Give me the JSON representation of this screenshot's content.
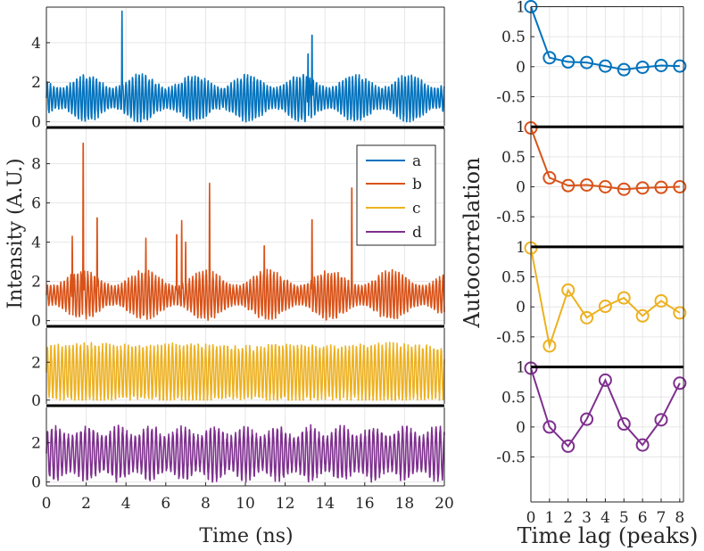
{
  "chart_data": {
    "left": {
      "type": "line",
      "xlabel": "Time (ns)",
      "ylabel": "Intensity (A.U.)",
      "x_range": [
        0,
        20
      ],
      "x_ticks": [
        0,
        2,
        4,
        6,
        8,
        10,
        12,
        14,
        16,
        18,
        20
      ],
      "legend": {
        "placement": "upper-right of panel b",
        "entries": [
          {
            "label": "a",
            "color": "#0072BD"
          },
          {
            "label": "b",
            "color": "#D95319"
          },
          {
            "label": "c",
            "color": "#EDB120"
          },
          {
            "label": "d",
            "color": "#7E2F8E"
          }
        ]
      },
      "panels": [
        {
          "name": "a",
          "color": "#0072BD",
          "ylim": [
            -0.2,
            5.8
          ],
          "yticks": [
            0,
            2,
            4
          ],
          "oscillation": {
            "period_ns": 0.165,
            "baseline": 1.2,
            "amp": 1.1,
            "mod_ns": 2.7,
            "mod_depth": 0.55
          },
          "spikes": [
            {
              "t": 3.8,
              "h": 5.6
            },
            {
              "t": 13.15,
              "h": 3.6
            },
            {
              "t": 13.35,
              "h": 4.6
            }
          ]
        },
        {
          "name": "b",
          "color": "#D95319",
          "ylim": [
            -0.2,
            9.8
          ],
          "yticks": [
            0,
            2,
            4,
            6,
            8
          ],
          "oscillation": {
            "period_ns": 0.17,
            "baseline": 1.3,
            "amp": 1.15,
            "mod_ns": 3.1,
            "mod_depth": 0.6
          },
          "spikes": [
            {
              "t": 1.3,
              "h": 4.3
            },
            {
              "t": 1.85,
              "h": 9.5
            },
            {
              "t": 2.55,
              "h": 5.5
            },
            {
              "t": 5.0,
              "h": 4.2
            },
            {
              "t": 6.55,
              "h": 4.6
            },
            {
              "t": 6.8,
              "h": 5.1
            },
            {
              "t": 7.0,
              "h": 4.0
            },
            {
              "t": 8.2,
              "h": 7.0
            },
            {
              "t": 10.95,
              "h": 4.0
            },
            {
              "t": 13.35,
              "h": 5.4
            },
            {
              "t": 15.35,
              "h": 7.1
            }
          ]
        },
        {
          "name": "c",
          "color": "#EDB120",
          "ylim": [
            -0.2,
            3.8
          ],
          "yticks": [
            0,
            2
          ],
          "oscillation": {
            "period_ns": 0.185,
            "baseline": 1.45,
            "amp": 1.4,
            "mod_ns": 5.0,
            "mod_depth": 0.08
          },
          "spikes": []
        },
        {
          "name": "d",
          "color": "#7E2F8E",
          "ylim": [
            -0.2,
            3.8
          ],
          "yticks": [
            0,
            2
          ],
          "oscillation": {
            "period_ns": 0.21,
            "baseline": 1.45,
            "amp": 1.3,
            "mod_ns": 1.6,
            "mod_depth": 0.35
          },
          "spikes": []
        }
      ]
    },
    "right": {
      "type": "line",
      "xlabel": "Time lag (peaks)",
      "ylabel": "Autocorrelation",
      "x_range": [
        0,
        8.2
      ],
      "x_ticks": [
        0,
        1,
        2,
        3,
        4,
        5,
        6,
        7,
        8
      ],
      "panels": [
        {
          "name": "a",
          "color": "#0072BD",
          "ylim": [
            -1.0,
            1.05
          ],
          "yticks": [
            1,
            0.5,
            0,
            -0.5
          ],
          "ytick_labels": [
            "1",
            "0.5",
            "0",
            "-0.5"
          ],
          "lags": [
            0,
            1,
            2,
            3,
            4,
            5,
            6,
            7,
            8
          ],
          "values": [
            1.0,
            0.15,
            0.08,
            0.07,
            0.01,
            -0.05,
            -0.01,
            0.02,
            0.01
          ]
        },
        {
          "name": "b",
          "color": "#D95319",
          "ylim": [
            -1.0,
            1.05
          ],
          "yticks": [
            1,
            0.5,
            0,
            -0.5
          ],
          "ytick_labels": [
            "1",
            "0.5",
            "0",
            "-0.5"
          ],
          "lags": [
            0,
            1,
            2,
            3,
            4,
            5,
            6,
            7,
            8
          ],
          "values": [
            0.98,
            0.15,
            0.02,
            0.03,
            0.0,
            -0.04,
            -0.02,
            -0.01,
            0.0
          ]
        },
        {
          "name": "c",
          "color": "#EDB120",
          "ylim": [
            -1.0,
            1.05
          ],
          "yticks": [
            1,
            0.5,
            0,
            -0.5
          ],
          "ytick_labels": [
            "1",
            "0.5",
            "0",
            "-0.5"
          ],
          "lags": [
            0,
            1,
            2,
            3,
            4,
            5,
            6,
            7,
            8
          ],
          "values": [
            0.98,
            -0.65,
            0.28,
            -0.18,
            0.01,
            0.15,
            -0.15,
            0.1,
            -0.1
          ]
        },
        {
          "name": "d",
          "color": "#7E2F8E",
          "ylim": [
            -1.0,
            1.05
          ],
          "yticks": [
            1,
            0.5,
            0,
            -0.5
          ],
          "ytick_labels": [
            "1",
            "0.5",
            "0",
            "-0.5"
          ],
          "lags": [
            0,
            1,
            2,
            3,
            4,
            5,
            6,
            7,
            8
          ],
          "values": [
            0.98,
            0.0,
            -0.32,
            0.13,
            0.78,
            0.05,
            -0.3,
            0.12,
            0.73
          ]
        }
      ]
    }
  },
  "colors": {
    "axis": "#262626",
    "grid": "#e6e6e6",
    "separator": "#000000"
  }
}
